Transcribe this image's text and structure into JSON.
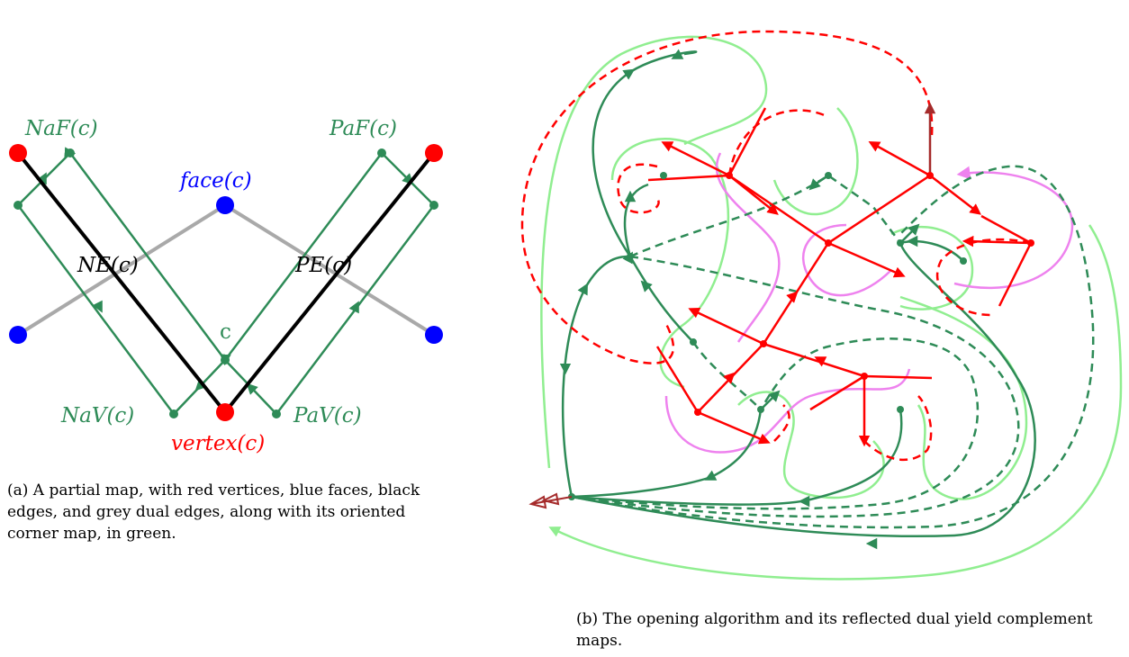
{
  "panel_a": {
    "labels": {
      "naf": "NaF(c)",
      "paf": "PaF(c)",
      "face": "face(c)",
      "ne": "NE(c)",
      "pe": "PE(c)",
      "c": "c",
      "nav": "NaV(c)",
      "pav": "PaV(c)",
      "vertex": "vertex(c)"
    },
    "caption": "(a) A partial map, with red vertices, blue faces, black edges, and grey dual edges, along with its oriented corner map, in green."
  },
  "panel_b": {
    "caption": "(b) The opening algorithm and its reflected dual yield complement maps."
  },
  "colors": {
    "vertex_red": "#ff0000",
    "face_blue": "#0000ff",
    "edge_black": "#000000",
    "dual_grey": "#a9a9a9",
    "corner_green": "#2e8b57",
    "light_green": "#90ee90",
    "violet": "#ee82ee",
    "dark_red": "#a52a2a"
  }
}
